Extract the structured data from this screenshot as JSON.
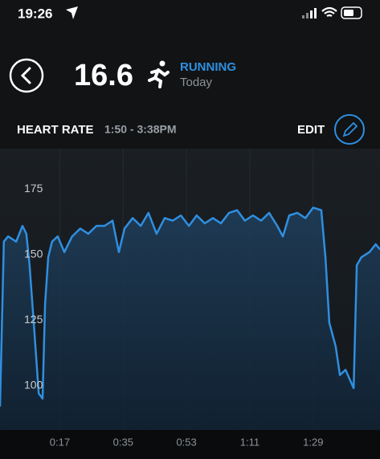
{
  "status": {
    "time": "19:26"
  },
  "header": {
    "value": "16.6",
    "activity": "RUNNING",
    "day": "Today"
  },
  "section": {
    "title": "HEART RATE",
    "range": "1:50 - 3:38PM",
    "action": "EDIT"
  },
  "chart_data": {
    "type": "line",
    "x": [
      0,
      1.1,
      2.3,
      4.6,
      6.4,
      7.5,
      8.4,
      9.6,
      11,
      12.1,
      12.8,
      13.7,
      14.8,
      16.4,
      18.3,
      20.5,
      22.8,
      25.1,
      27.4,
      29.7,
      32,
      33.8,
      35.4,
      37.7,
      40,
      42.2,
      44.5,
      46.8,
      49.1,
      51.4,
      53.7,
      55.9,
      58.2,
      60.5,
      62.8,
      65.1,
      67.4,
      69.6,
      71.9,
      74.2,
      76.5,
      78.8,
      80.4,
      82.2,
      84.5,
      86.8,
      89,
      91.3,
      92.5,
      93.6,
      95.4,
      96.6,
      98.2,
      100.5,
      101.4,
      102.7,
      105,
      106.8,
      108
    ],
    "series": [
      {
        "color": "#2f8fe0",
        "values": [
          92,
          155,
          157,
          155,
          161,
          158,
          146,
          124,
          97,
          95,
          131,
          149,
          155,
          157,
          151,
          157,
          160,
          158,
          161,
          161,
          163,
          151,
          160,
          164,
          161,
          166,
          158,
          164,
          163,
          165,
          161,
          165,
          162,
          164,
          162,
          166,
          167,
          163,
          165,
          163,
          166,
          161,
          157,
          165,
          166,
          164,
          168,
          167,
          149,
          124,
          115,
          104,
          106,
          99,
          146,
          149,
          151,
          154,
          152
        ]
      }
    ],
    "xlim": [
      0,
      108
    ],
    "ylim": [
      83,
      190.5
    ],
    "xticks": [
      {
        "value": 17,
        "label": "0:17"
      },
      {
        "value": 35,
        "label": "0:35"
      },
      {
        "value": 53,
        "label": "0:53"
      },
      {
        "value": 71,
        "label": "1:11"
      },
      {
        "value": 89,
        "label": "1:29"
      }
    ],
    "yticks": [
      100,
      125,
      150,
      175
    ],
    "grid": true
  }
}
